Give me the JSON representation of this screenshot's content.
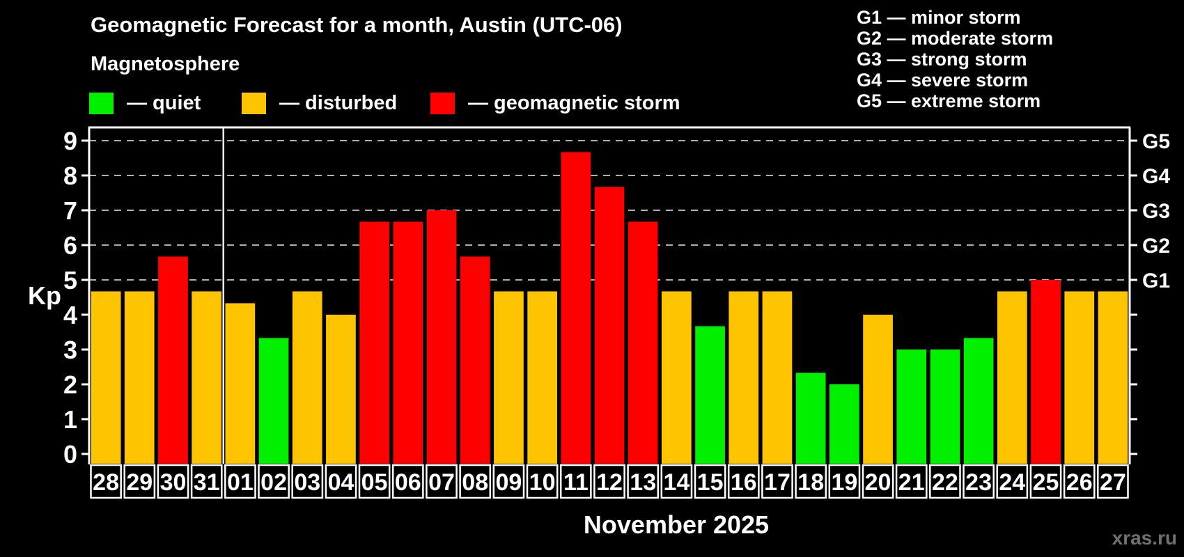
{
  "header": {
    "title": "Geomagnetic Forecast for a month, Austin (UTC-06)",
    "subtitle": "Magnetosphere",
    "legend": [
      {
        "status": "quiet",
        "label": "— quiet"
      },
      {
        "status": "disturbed",
        "label": "— disturbed"
      },
      {
        "status": "storm",
        "label": "— geomagnetic storm"
      }
    ],
    "g_legend": [
      "G1 — minor storm",
      "G2 — moderate storm",
      "G3 — strong storm",
      "G4 — severe storm",
      "G5 — extreme storm"
    ]
  },
  "footer": {
    "month_label": "November 2025",
    "watermark": "xras.ru"
  },
  "colors": {
    "quiet": "#00f000",
    "disturbed": "#ffc400",
    "storm": "#ff0000",
    "background": "#000000",
    "axis": "#ffffff",
    "gridline": "#b0b0b0",
    "day_label": "#ffffff",
    "watermark": "#707070"
  },
  "chart_data": {
    "type": "bar",
    "title": "Geomagnetic Forecast for a month, Austin (UTC-06)",
    "xlabel": "November 2025",
    "ylabel": "Kp",
    "ylim": [
      0,
      9.4
    ],
    "grid": "dashed horizontal lines at storm levels 5-9",
    "legend_position": "top-left",
    "yticks_left": [
      0,
      1,
      2,
      3,
      4,
      5,
      6,
      7,
      8,
      9
    ],
    "yticks_right": [
      0,
      1,
      2,
      3,
      4,
      5,
      6,
      7,
      8,
      9
    ],
    "grid_levels": [
      5,
      6,
      7,
      8,
      9
    ],
    "right_axis": [
      {
        "kp": 5,
        "label": "G1"
      },
      {
        "kp": 6,
        "label": "G2"
      },
      {
        "kp": 7,
        "label": "G3"
      },
      {
        "kp": 8,
        "label": "G4"
      },
      {
        "kp": 9,
        "label": "G5"
      }
    ],
    "month_boundary_after_index": 3,
    "categories": [
      "28",
      "29",
      "30",
      "31",
      "01",
      "02",
      "03",
      "04",
      "05",
      "06",
      "07",
      "08",
      "09",
      "10",
      "11",
      "12",
      "13",
      "14",
      "15",
      "16",
      "17",
      "18",
      "19",
      "20",
      "21",
      "22",
      "23",
      "24",
      "25",
      "26",
      "27"
    ],
    "series": [
      {
        "name": "Kp index",
        "values": [
          4.67,
          4.67,
          5.67,
          4.67,
          4.33,
          3.33,
          4.67,
          4.0,
          6.67,
          6.67,
          7.0,
          5.67,
          4.67,
          4.67,
          8.67,
          7.67,
          6.67,
          4.67,
          3.67,
          4.67,
          4.67,
          2.33,
          2.0,
          4.0,
          3.0,
          3.0,
          3.33,
          4.67,
          5.0,
          4.67,
          4.67
        ]
      }
    ],
    "statuses": [
      "disturbed",
      "disturbed",
      "storm",
      "disturbed",
      "disturbed",
      "quiet",
      "disturbed",
      "disturbed",
      "storm",
      "storm",
      "storm",
      "storm",
      "disturbed",
      "disturbed",
      "storm",
      "storm",
      "storm",
      "disturbed",
      "quiet",
      "disturbed",
      "disturbed",
      "quiet",
      "quiet",
      "disturbed",
      "quiet",
      "quiet",
      "quiet",
      "disturbed",
      "storm",
      "disturbed",
      "disturbed"
    ]
  }
}
